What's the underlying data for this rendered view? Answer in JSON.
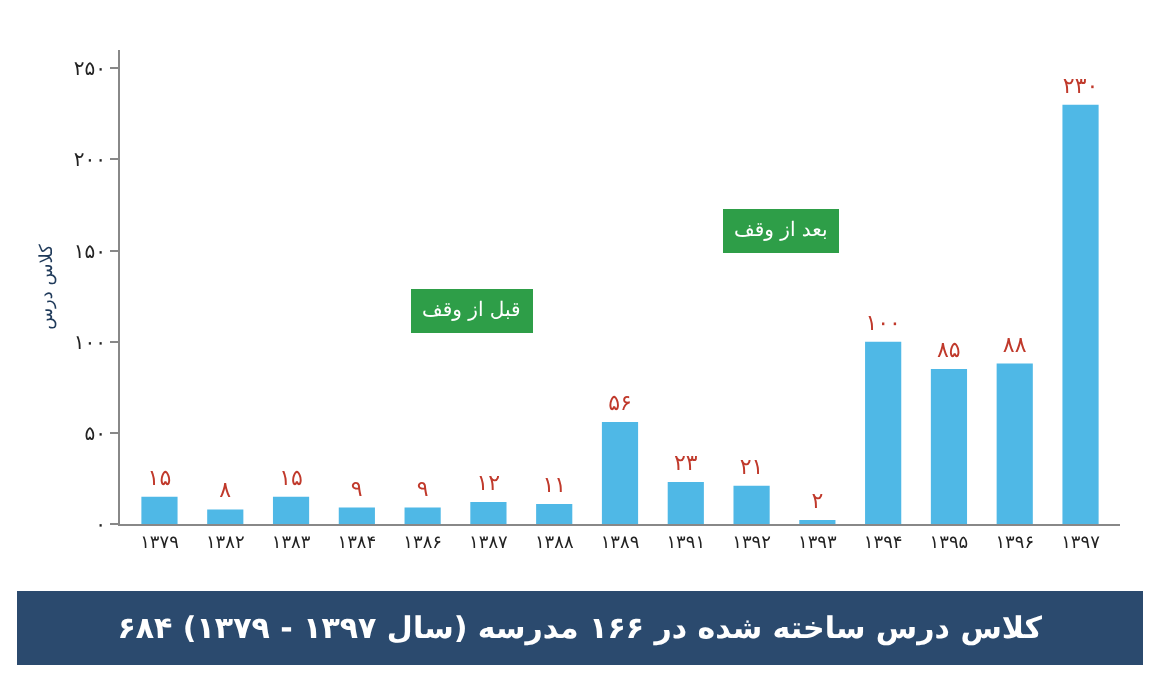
{
  "chart_data": {
    "type": "bar",
    "title": "۶۸۴ کلاس درس ساخته شده در ۱۶۶ مدرسه (سال ۱۳۹۷ - ۱۳۷۹)",
    "ylabel": "کلاس درس",
    "categories": [
      "۱۳۷۹",
      "۱۳۸۲",
      "۱۳۸۳",
      "۱۳۸۴",
      "۱۳۸۶",
      "۱۳۸۷",
      "۱۳۸۸",
      "۱۳۸۹",
      "۱۳۹۱",
      "۱۳۹۲",
      "۱۳۹۳",
      "۱۳۹۴",
      "۱۳۹۵",
      "۱۳۹۶",
      "۱۳۹۷"
    ],
    "values": [
      15,
      8,
      15,
      9,
      9,
      12,
      11,
      56,
      23,
      21,
      2,
      100,
      85,
      88,
      230
    ],
    "value_labels": [
      "۱۵",
      "۸",
      "۱۵",
      "۹",
      "۹",
      "۱۲",
      "۱۱",
      "۵۶",
      "۲۳",
      "۲۱",
      "۲",
      "۱۰۰",
      "۸۵",
      "۸۸",
      "۲۳۰"
    ],
    "color": "#4fb8e6",
    "ylim": [
      0,
      260
    ],
    "yticks": [
      {
        "value": 0,
        "label": "۰"
      },
      {
        "value": 50,
        "label": "۵۰"
      },
      {
        "value": 100,
        "label": "۱۰۰"
      },
      {
        "value": 150,
        "label": "۱۵۰"
      },
      {
        "value": 200,
        "label": "۲۰۰"
      },
      {
        "value": 250,
        "label": "۲۵۰"
      }
    ],
    "annotations": [
      "قبل از وقف",
      "بعد از وقف"
    ],
    "legend": false
  }
}
